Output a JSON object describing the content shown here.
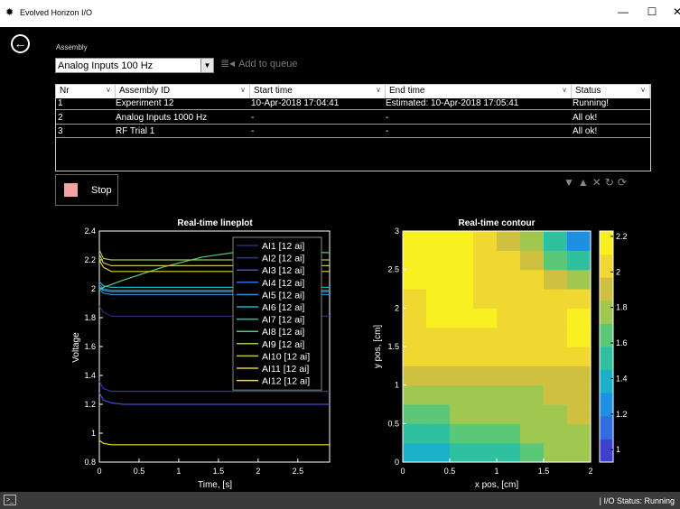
{
  "window": {
    "title": "Evolved Horizon I/O",
    "minimize": "—",
    "maximize": "☐",
    "close": "✕"
  },
  "assembly": {
    "label": "Assembly",
    "selected": "Analog Inputs 100 Hz",
    "add_to_queue": "Add to queue"
  },
  "table": {
    "headers": [
      "Nr",
      "Assembly ID",
      "Start time",
      "End time",
      "Status"
    ],
    "rows": [
      [
        "1",
        "Experiment 12",
        "10-Apr-2018 17:04:41",
        "Estimated: 10-Apr-2018 17:05:41",
        "Running!"
      ],
      [
        "2",
        "Analog Inputs 1000 Hz",
        "-",
        "-",
        "All ok!"
      ],
      [
        "3",
        "RF Trial 1",
        "-",
        "-",
        "All ok!"
      ]
    ]
  },
  "stop_button": "Stop",
  "status_bar": {
    "io_status": "| I/O Status: Running",
    "terminal_icon": ">_"
  },
  "chart_data": [
    {
      "type": "line",
      "title": "Real-time lineplot",
      "xlabel": "Time, [s]",
      "ylabel": "Voltage",
      "xlim": [
        0,
        2.9
      ],
      "ylim": [
        0.8,
        2.4
      ],
      "xticks": [
        "0",
        "0.5",
        "1",
        "1.5",
        "2",
        "2.5"
      ],
      "xtick_values": [
        0,
        0.5,
        1,
        1.5,
        2,
        2.5
      ],
      "yticks": [
        "0.8",
        "1",
        "1.2",
        "1.4",
        "1.6",
        "1.8",
        "2",
        "2.2",
        "2.4"
      ],
      "ytick_values": [
        0.8,
        1.0,
        1.2,
        1.4,
        1.6,
        1.8,
        2.0,
        2.2,
        2.4
      ],
      "legend_position": "top-right",
      "series": [
        {
          "name": "AI1 [12 ai]",
          "color": "#2a2a78",
          "x": [
            0,
            0.05,
            0.15,
            0.3,
            2.9
          ],
          "y": [
            1.88,
            1.84,
            1.81,
            1.81,
            1.81
          ]
        },
        {
          "name": "AI2 [12 ai]",
          "color": "#3333b0",
          "x": [
            0,
            0.05,
            0.15,
            0.3,
            2.9
          ],
          "y": [
            1.36,
            1.31,
            1.29,
            1.29,
            1.29
          ]
        },
        {
          "name": "AI3 [12 ai]",
          "color": "#4848d0",
          "x": [
            0,
            0.05,
            0.15,
            0.3,
            2.9
          ],
          "y": [
            1.28,
            1.23,
            1.21,
            1.2,
            1.2
          ]
        },
        {
          "name": "AI4 [12 ai]",
          "color": "#2f6de0",
          "x": [
            0,
            0.05,
            0.15,
            0.3,
            2.9
          ],
          "y": [
            2.03,
            2.0,
            1.99,
            1.99,
            1.99
          ]
        },
        {
          "name": "AI5 [12 ai]",
          "color": "#1f90e0",
          "x": [
            0,
            0.05,
            0.15,
            0.3,
            2.9
          ],
          "y": [
            2.0,
            1.97,
            1.96,
            1.96,
            1.96
          ]
        },
        {
          "name": "AI6 [12 ai]",
          "color": "#1ab0c8",
          "x": [
            0,
            0.05,
            0.15,
            0.3,
            2.9
          ],
          "y": [
            2.05,
            2.02,
            2.01,
            2.01,
            2.01
          ]
        },
        {
          "name": "AI7 [12 ai]",
          "color": "#2fc0a0",
          "x": [
            0,
            0.05,
            0.15,
            0.3,
            2.9
          ],
          "y": [
            2.01,
            1.99,
            1.98,
            1.98,
            1.98
          ]
        },
        {
          "name": "AI8 [12 ai]",
          "color": "#5ac878",
          "x": [
            0,
            0.3,
            0.8,
            1.3,
            1.8,
            2.2,
            2.9
          ],
          "y": [
            2.0,
            2.06,
            2.15,
            2.22,
            2.26,
            2.26,
            2.25
          ]
        },
        {
          "name": "AI9 [12 ai]",
          "color": "#a0c850",
          "x": [
            0,
            0.05,
            0.15,
            0.3,
            2.9
          ],
          "y": [
            2.27,
            2.21,
            2.2,
            2.2,
            2.2
          ]
        },
        {
          "name": "AI10 [12 ai]",
          "color": "#d0c040",
          "x": [
            0,
            0.05,
            0.15,
            0.3,
            2.9
          ],
          "y": [
            2.24,
            2.18,
            2.16,
            2.16,
            2.16
          ]
        },
        {
          "name": "AI11 [12 ai]",
          "color": "#e0d030",
          "x": [
            0,
            0.05,
            0.15,
            0.3,
            2.9
          ],
          "y": [
            2.2,
            2.15,
            2.12,
            2.12,
            2.12
          ]
        },
        {
          "name": "AI12 [12 ai]",
          "color": "#f0e020",
          "x": [
            0,
            0.05,
            0.15,
            0.3,
            2.9
          ],
          "y": [
            0.95,
            0.93,
            0.92,
            0.92,
            0.92
          ]
        }
      ]
    },
    {
      "type": "heatmap",
      "title": "Real-time contour",
      "xlabel": "x pos, [cm]",
      "ylabel": "y pos, [cm]",
      "xlim": [
        0,
        2
      ],
      "ylim": [
        0,
        3
      ],
      "xticks": [
        "0",
        "0.5",
        "1",
        "1.5",
        "2"
      ],
      "xtick_values": [
        0,
        0.5,
        1,
        1.5,
        2
      ],
      "yticks": [
        "0",
        "0.5",
        "1",
        "1.5",
        "2",
        "2.5",
        "3"
      ],
      "ytick_values": [
        0,
        0.5,
        1,
        1.5,
        2,
        2.5,
        3
      ],
      "colorbar_ticks": [
        "1",
        "1.2",
        "1.4",
        "1.6",
        "1.8",
        "2",
        "2.2"
      ],
      "colorbar_values": [
        1.0,
        1.2,
        1.4,
        1.6,
        1.8,
        2.0,
        2.2
      ],
      "colorbar_range": [
        0.93,
        2.23
      ],
      "colorbar_colors": [
        "#4040d0",
        "#2f6de0",
        "#1f90e0",
        "#1ab0c8",
        "#2fc0a0",
        "#5ac878",
        "#a0c850",
        "#d0c040",
        "#f0d830",
        "#f8f020"
      ],
      "x": [
        0,
        0.25,
        0.5,
        0.75,
        1.0,
        1.25,
        1.5,
        1.75,
        2.0
      ],
      "y": [
        0,
        0.25,
        0.5,
        0.75,
        1.0,
        1.25,
        1.5,
        1.75,
        2.0,
        2.25,
        2.5,
        2.75,
        3.0
      ],
      "z": [
        [
          1.3,
          1.32,
          1.38,
          1.42,
          1.48,
          1.55,
          1.62,
          1.75,
          1.85
        ],
        [
          1.45,
          1.48,
          1.52,
          1.56,
          1.6,
          1.66,
          1.72,
          1.8,
          1.85
        ],
        [
          1.62,
          1.62,
          1.64,
          1.66,
          1.68,
          1.72,
          1.76,
          1.82,
          1.85
        ],
        [
          1.78,
          1.78,
          1.78,
          1.78,
          1.78,
          1.8,
          1.82,
          1.84,
          1.86
        ],
        [
          1.82,
          1.84,
          1.86,
          1.86,
          1.86,
          1.86,
          1.84,
          1.86,
          1.88
        ],
        [
          2.05,
          2.05,
          2.06,
          2.05,
          2.05,
          2.05,
          2.04,
          2.05,
          2.06
        ],
        [
          2.08,
          2.08,
          2.08,
          2.08,
          2.08,
          2.07,
          2.06,
          2.1,
          2.15
        ],
        [
          2.1,
          2.1,
          2.1,
          2.1,
          2.1,
          2.08,
          2.08,
          2.14,
          2.2
        ],
        [
          1.95,
          2.1,
          2.1,
          2.1,
          2.1,
          2.08,
          2.06,
          2.1,
          2.15
        ],
        [
          2.12,
          2.12,
          2.12,
          2.1,
          2.08,
          2.05,
          2.0,
          1.98,
          2.0
        ],
        [
          2.12,
          2.12,
          2.12,
          2.1,
          2.06,
          1.98,
          1.86,
          1.75,
          1.6
        ],
        [
          2.12,
          2.12,
          2.12,
          2.1,
          2.05,
          1.92,
          1.72,
          1.5,
          1.3
        ],
        [
          2.12,
          2.12,
          2.12,
          2.1,
          2.02,
          1.85,
          1.6,
          1.3,
          1.05
        ]
      ]
    }
  ]
}
